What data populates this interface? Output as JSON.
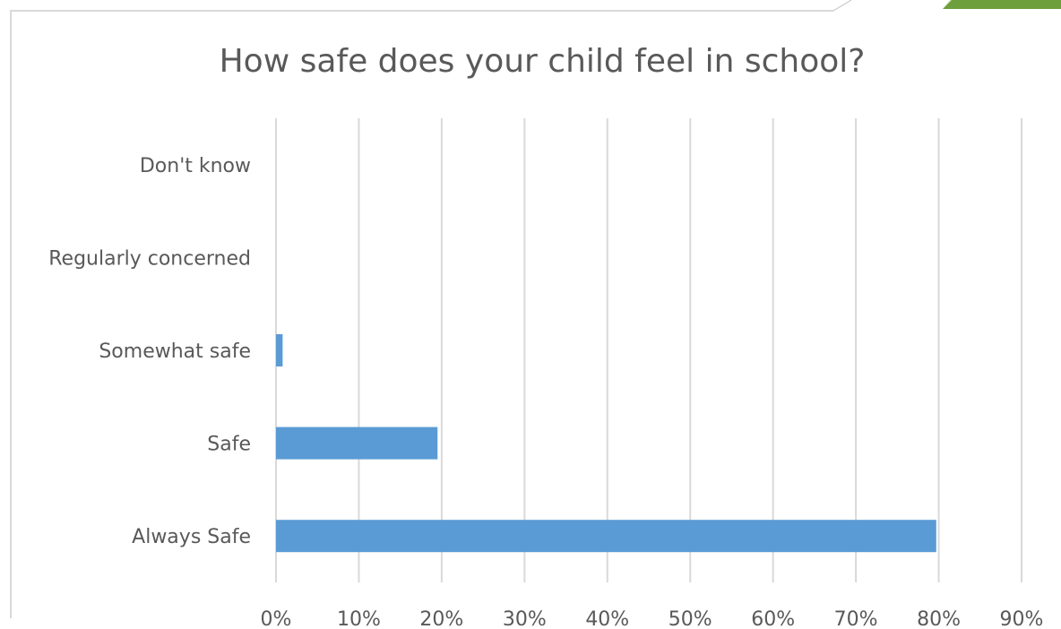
{
  "chart_data": {
    "type": "bar",
    "orientation": "horizontal",
    "title": "How safe does your child feel in school?",
    "xlabel": "",
    "ylabel": "",
    "categories": [
      "Don't know",
      "Regularly concerned",
      "Somewhat safe",
      "Safe",
      "Always Safe"
    ],
    "values": [
      0,
      0,
      0.8,
      19.5,
      79.7
    ],
    "xlim": [
      0,
      90
    ],
    "x_ticks": [
      "0%",
      "10%",
      "20%",
      "30%",
      "40%",
      "50%",
      "60%",
      "70%",
      "80%",
      "90%"
    ],
    "grid": "vertical",
    "legend": "none",
    "colors": {
      "bar": "#5B9BD5",
      "gridline": "#D9D9D9",
      "text": "#595959",
      "frame": "#D9D9D9",
      "corner_light": "#D6E7B5",
      "corner_dark": "#6E9F3D"
    }
  }
}
